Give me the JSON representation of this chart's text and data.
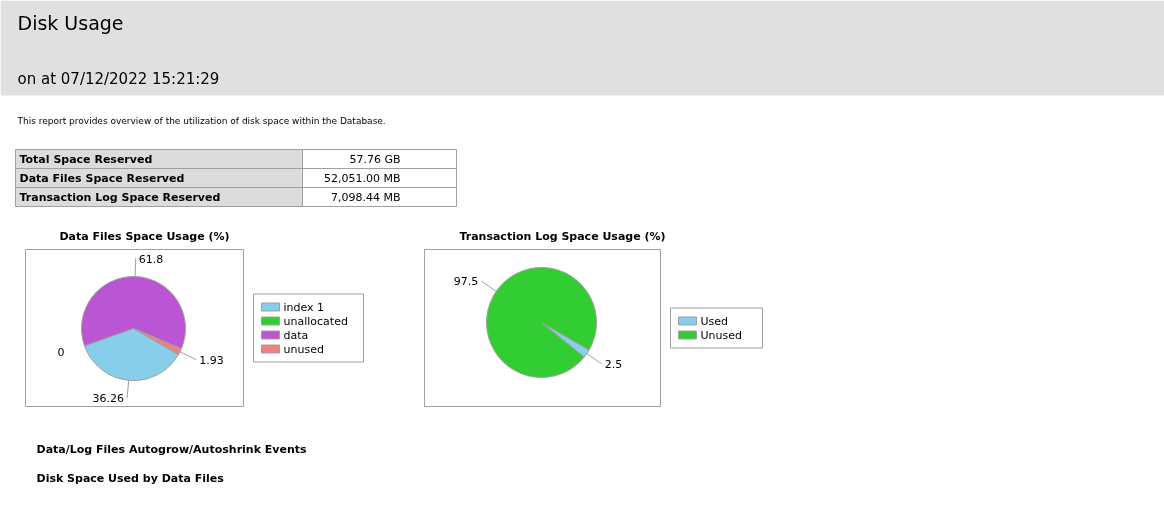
{
  "chart_data": [
    {
      "type": "other",
      "title": "Disk Usage",
      "subtitle": "on at 07/12/2022 15:21:29",
      "annotations": [
        "This report provides overview of the utilization of disk space within the Database.",
        "Total Space Reserved",
        "57.76 GB",
        "Data Files Space Reserved",
        "52,051.00 MB",
        "Transaction Log Space Reserved",
        "7,098.44 MB",
        "Data/Log Files Autogrow/Autoshrink Events",
        "Disk Space Used by Data Files"
      ]
    },
    {
      "type": "pie",
      "title": "Data Files Space Usage (%)",
      "categories": [
        "index 1",
        "unallocated",
        "data",
        "unused"
      ],
      "values": [
        36.26,
        0,
        61.8,
        1.93
      ],
      "colors": [
        "#87ceeb",
        "#32cd32",
        "#ba55d3",
        "#f08080"
      ],
      "value_labels": [
        "36.26",
        "0",
        "61.8",
        "1.93"
      ],
      "legend": "right"
    },
    {
      "type": "pie",
      "title": "Transaction Log Space Usage (%)",
      "categories": [
        "Used",
        "Unused"
      ],
      "values": [
        2.5,
        97.5
      ],
      "colors": [
        "#87ceeb",
        "#32cd32"
      ],
      "data_labels": true,
      "legend": "right"
    }
  ]
}
